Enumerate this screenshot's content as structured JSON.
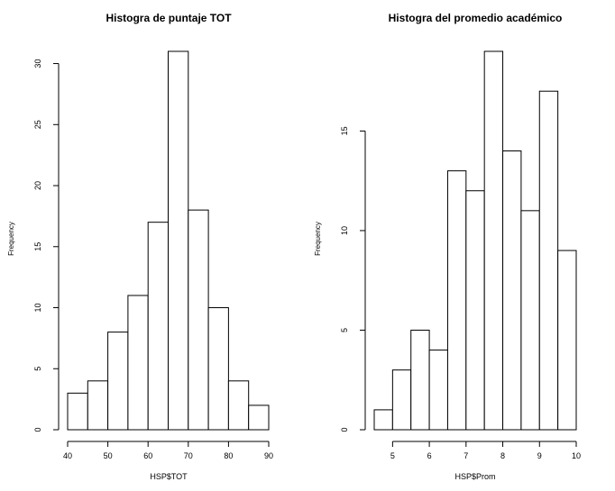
{
  "chart_data": [
    {
      "type": "bar",
      "subtype": "histogram",
      "title": "Histogra de puntaje TOT",
      "xlabel": "HSP$TOT",
      "ylabel": "Frequency",
      "bins": [
        [
          40,
          45
        ],
        [
          45,
          50
        ],
        [
          50,
          55
        ],
        [
          55,
          60
        ],
        [
          60,
          65
        ],
        [
          65,
          70
        ],
        [
          70,
          75
        ],
        [
          75,
          80
        ],
        [
          80,
          85
        ],
        [
          85,
          90
        ]
      ],
      "values": [
        3,
        4,
        8,
        11,
        17,
        31,
        18,
        10,
        4,
        2
      ],
      "xlim": [
        40,
        90
      ],
      "ylim": [
        0,
        31
      ],
      "xticks": [
        40,
        50,
        60,
        70,
        80,
        90
      ],
      "yticks": [
        0,
        5,
        10,
        15,
        20,
        25,
        30
      ],
      "grid": false
    },
    {
      "type": "bar",
      "subtype": "histogram",
      "title": "Histogra del promedio académico",
      "xlabel": "HSP$Prom",
      "ylabel": "Frequency",
      "bins": [
        [
          4.5,
          5
        ],
        [
          5,
          5.5
        ],
        [
          5.5,
          6
        ],
        [
          6,
          6.5
        ],
        [
          6.5,
          7
        ],
        [
          7,
          7.5
        ],
        [
          7.5,
          8
        ],
        [
          8,
          8.5
        ],
        [
          8.5,
          9
        ],
        [
          9,
          9.5
        ],
        [
          9.5,
          10
        ]
      ],
      "values": [
        1,
        3,
        5,
        4,
        13,
        12,
        19,
        14,
        11,
        17,
        9
      ],
      "xlim": [
        4.5,
        10
      ],
      "ylim": [
        0,
        19
      ],
      "xticks": [
        5,
        6,
        7,
        8,
        9,
        10
      ],
      "yticks": [
        0,
        5,
        10,
        15
      ],
      "grid": false
    }
  ]
}
